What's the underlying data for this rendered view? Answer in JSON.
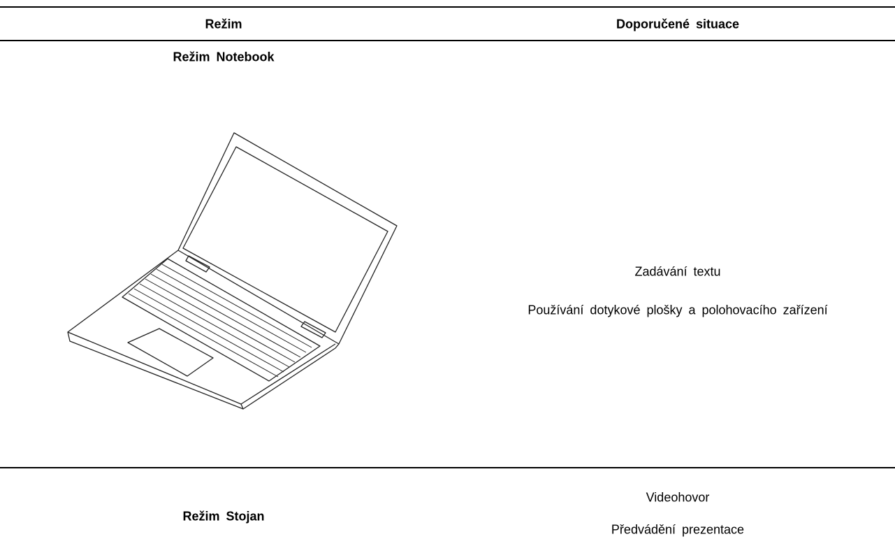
{
  "table": {
    "headers": [
      "Režim",
      "Doporučené situace"
    ],
    "rows": [
      {
        "mode": "Režim Notebook",
        "situations": [
          "Zadávání textu",
          "Používání dotykové plošky a polohovacího zařízení"
        ]
      },
      {
        "mode": "Režim Stojan",
        "situations": [
          "Videohovor",
          "Předvádění prezentace"
        ]
      }
    ]
  }
}
